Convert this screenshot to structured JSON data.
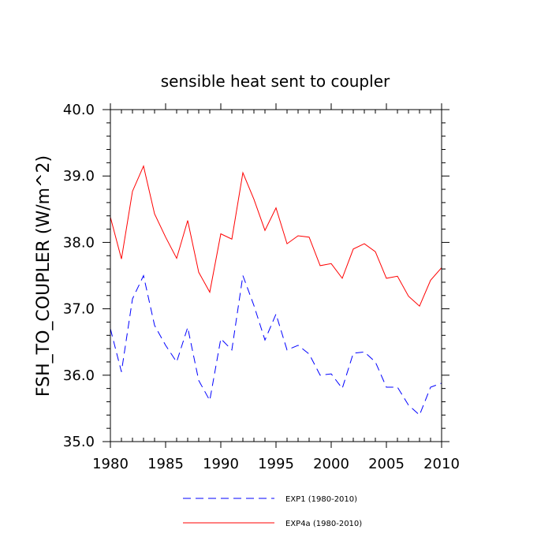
{
  "chart_data": {
    "type": "line",
    "title": "sensible heat sent to coupler",
    "xlabel": "",
    "ylabel": "FSH_TO_COUPLER  (W/m^2)",
    "xlim": [
      1980,
      2010
    ],
    "ylim": [
      35.0,
      40.0
    ],
    "x_ticks": [
      1980,
      1985,
      1990,
      1995,
      2000,
      2005,
      2010
    ],
    "x_tick_labels": [
      "1980",
      "1985",
      "1990",
      "1995",
      "2000",
      "2005",
      "2010"
    ],
    "y_ticks": [
      35.0,
      36.0,
      37.0,
      38.0,
      39.0,
      40.0
    ],
    "y_tick_labels": [
      "35.0",
      "36.0",
      "37.0",
      "38.0",
      "39.0",
      "40.0"
    ],
    "grid": false,
    "legend_position": "bottom",
    "x": [
      1980,
      1981,
      1982,
      1983,
      1984,
      1985,
      1986,
      1987,
      1988,
      1989,
      1990,
      1991,
      1992,
      1993,
      1994,
      1995,
      1996,
      1997,
      1998,
      1999,
      2000,
      2001,
      2002,
      2003,
      2004,
      2005,
      2006,
      2007,
      2008,
      2009,
      2010
    ],
    "series": [
      {
        "name": "EXP1 (1980-2010)",
        "color": "#0000ff",
        "dash": "dashed",
        "values": [
          36.7,
          36.05,
          37.15,
          37.5,
          36.75,
          36.45,
          36.2,
          36.72,
          35.92,
          35.62,
          36.55,
          36.38,
          37.5,
          37.05,
          36.53,
          36.92,
          36.38,
          36.45,
          36.32,
          36.0,
          36.02,
          35.8,
          36.33,
          36.35,
          36.2,
          35.82,
          35.82,
          35.55,
          35.4,
          35.82,
          35.88
        ]
      },
      {
        "name": "EXP4a (1980-2010)",
        "color": "#ff0000",
        "dash": "solid",
        "values": [
          38.38,
          37.75,
          38.77,
          39.15,
          38.43,
          38.08,
          37.76,
          38.33,
          37.55,
          37.25,
          38.13,
          38.05,
          39.05,
          38.65,
          38.18,
          38.52,
          37.98,
          38.1,
          38.08,
          37.65,
          37.68,
          37.46,
          37.9,
          37.98,
          37.86,
          37.46,
          37.49,
          37.19,
          37.04,
          37.43,
          37.62
        ]
      }
    ]
  }
}
